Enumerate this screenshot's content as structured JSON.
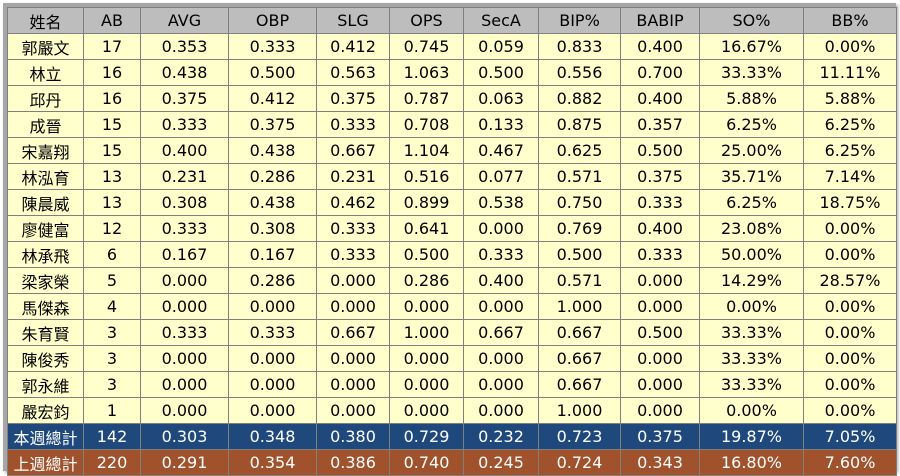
{
  "columns": [
    "姓名",
    "AB",
    "AVG",
    "OBP",
    "SLG",
    "OPS",
    "SecA",
    "BIP%",
    "BABIP",
    "SO%",
    "BB%"
  ],
  "rows": [
    [
      "郭嚴文",
      "17",
      "0.353",
      "0.333",
      "0.412",
      "0.745",
      "0.059",
      "0.833",
      "0.400",
      "16.67%",
      "0.00%"
    ],
    [
      "林立",
      "16",
      "0.438",
      "0.500",
      "0.563",
      "1.063",
      "0.500",
      "0.556",
      "0.700",
      "33.33%",
      "11.11%"
    ],
    [
      "邱丹",
      "16",
      "0.375",
      "0.412",
      "0.375",
      "0.787",
      "0.063",
      "0.882",
      "0.400",
      "5.88%",
      "5.88%"
    ],
    [
      "成晉",
      "15",
      "0.333",
      "0.375",
      "0.333",
      "0.708",
      "0.133",
      "0.875",
      "0.357",
      "6.25%",
      "6.25%"
    ],
    [
      "宋嘉翔",
      "15",
      "0.400",
      "0.438",
      "0.667",
      "1.104",
      "0.467",
      "0.625",
      "0.500",
      "25.00%",
      "6.25%"
    ],
    [
      "林泓育",
      "13",
      "0.231",
      "0.286",
      "0.231",
      "0.516",
      "0.077",
      "0.571",
      "0.375",
      "35.71%",
      "7.14%"
    ],
    [
      "陳晨威",
      "13",
      "0.308",
      "0.438",
      "0.462",
      "0.899",
      "0.538",
      "0.750",
      "0.333",
      "6.25%",
      "18.75%"
    ],
    [
      "廖健富",
      "12",
      "0.333",
      "0.308",
      "0.333",
      "0.641",
      "0.000",
      "0.769",
      "0.400",
      "23.08%",
      "0.00%"
    ],
    [
      "林承飛",
      "6",
      "0.167",
      "0.167",
      "0.333",
      "0.500",
      "0.333",
      "0.500",
      "0.333",
      "50.00%",
      "0.00%"
    ],
    [
      "梁家榮",
      "5",
      "0.000",
      "0.286",
      "0.000",
      "0.286",
      "0.400",
      "0.571",
      "0.000",
      "14.29%",
      "28.57%"
    ],
    [
      "馬傑森",
      "4",
      "0.000",
      "0.000",
      "0.000",
      "0.000",
      "0.000",
      "1.000",
      "0.000",
      "0.00%",
      "0.00%"
    ],
    [
      "朱育賢",
      "3",
      "0.333",
      "0.333",
      "0.667",
      "1.000",
      "0.667",
      "0.667",
      "0.500",
      "33.33%",
      "0.00%"
    ],
    [
      "陳俊秀",
      "3",
      "0.000",
      "0.000",
      "0.000",
      "0.000",
      "0.000",
      "0.667",
      "0.000",
      "33.33%",
      "0.00%"
    ],
    [
      "郭永維",
      "3",
      "0.000",
      "0.000",
      "0.000",
      "0.000",
      "0.000",
      "0.667",
      "0.000",
      "33.33%",
      "0.00%"
    ],
    [
      "嚴宏鈞",
      "1",
      "0.000",
      "0.000",
      "0.000",
      "0.000",
      "0.000",
      "1.000",
      "0.000",
      "0.00%",
      "0.00%"
    ]
  ],
  "totals": [
    [
      "本週總計",
      "142",
      "0.303",
      "0.348",
      "0.380",
      "0.729",
      "0.232",
      "0.723",
      "0.375",
      "19.87%",
      "7.05%"
    ],
    [
      "上週總計",
      "220",
      "0.291",
      "0.354",
      "0.386",
      "0.740",
      "0.245",
      "0.724",
      "0.343",
      "16.80%",
      "7.60%"
    ]
  ],
  "colors": {
    "header_bg": "#bdbdbd",
    "row_bg": "#ffffcc",
    "this_week_bg": "#1f497d",
    "last_week_bg": "#a0522d",
    "border": "#7f7f7f"
  }
}
